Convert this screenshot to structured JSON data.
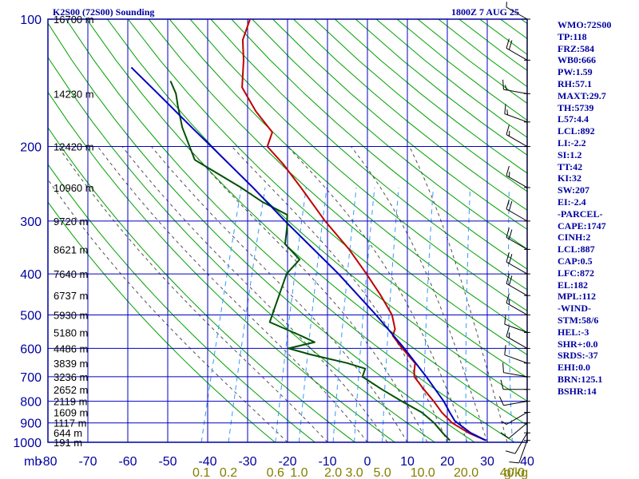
{
  "header": {
    "left_title": "K2S00 (72S00) Sounding",
    "right_title": "1800Z  7 AUG 25"
  },
  "indices": [
    "WMO:72S00",
    "TP:118",
    "FRZ:584",
    "WB0:666",
    "PW:1.59",
    "RH:57.1",
    "MAXT:29.7",
    "TH:5739",
    "L57:4.4",
    "LCL:892",
    "LI:-2.2",
    "SI:1.2",
    "TT:42",
    "KI:32",
    "SW:207",
    "EI:-2.4",
    "-PARCEL-",
    "CAPE:1747",
    "CINH:2",
    "LCL:887",
    "CAP:0.5",
    "LFC:872",
    "EL:182",
    "MPL:112",
    "-WIND-",
    "STM:58/6",
    "HEL:-3",
    "SHR+:0.0",
    "SRDS:-37",
    "EHI:0.0",
    "BRN:125.1",
    "BSHR:14"
  ],
  "colors": {
    "border": "#0000a0",
    "grid": "#0000c0",
    "dry_adiabat": "#00a000",
    "moist_adiabat": "#505050",
    "mixing_ratio": "#3399ff",
    "temperature": "#c00000",
    "dewpoint": "#005000",
    "parcel": "#0000c0",
    "mixing_label": "#808000"
  },
  "chart_data": {
    "type": "line",
    "title": "K2S00 (72S00) Sounding",
    "subtitle": "1800Z  7 AUG 25",
    "xlabel": "",
    "ylabel": "mb",
    "y_scale": "log",
    "ylim": [
      1000,
      100
    ],
    "xlim": [
      -80,
      40
    ],
    "pressure_ticks": [
      100,
      200,
      300,
      400,
      500,
      600,
      700,
      800,
      900,
      1000
    ],
    "pressure_tick_labels": [
      "100",
      "200",
      "300",
      "400",
      "500",
      "600",
      "700",
      "800",
      "900",
      "1000"
    ],
    "temperature_ticks": [
      -80,
      -70,
      -60,
      -50,
      -40,
      -30,
      -20,
      -10,
      0,
      10,
      20,
      30,
      40
    ],
    "temperature_tick_labels": [
      "-80",
      "-70",
      "-60",
      "-50",
      "-40",
      "-30",
      "-20",
      "-10",
      "0",
      "10",
      "20",
      "30",
      "40"
    ],
    "axis_unit_label": "mb",
    "height_labels": [
      {
        "p": 100,
        "text": "16700 m"
      },
      {
        "p": 150,
        "text": "14230 m"
      },
      {
        "p": 200,
        "text": "12420 m"
      },
      {
        "p": 250,
        "text": "10960 m"
      },
      {
        "p": 300,
        "text": "9720 m"
      },
      {
        "p": 350,
        "text": "8621 m"
      },
      {
        "p": 400,
        "text": "7640 m"
      },
      {
        "p": 450,
        "text": "6737 m"
      },
      {
        "p": 500,
        "text": "5930 m"
      },
      {
        "p": 550,
        "text": "5180 m"
      },
      {
        "p": 600,
        "text": "4486 m"
      },
      {
        "p": 650,
        "text": "3839 m"
      },
      {
        "p": 700,
        "text": "3236 m"
      },
      {
        "p": 750,
        "text": "2652 m"
      },
      {
        "p": 800,
        "text": "2119 m"
      },
      {
        "p": 850,
        "text": "1609 m"
      },
      {
        "p": 900,
        "text": "1117 m"
      },
      {
        "p": 950,
        "text": "644 m"
      },
      {
        "p": 1000,
        "text": "191 m"
      }
    ],
    "mixing_ratio_labels": [
      "0.1",
      "0.2",
      "0.6",
      "1.0",
      "2.0",
      "3.0",
      "5.0",
      "10.0",
      "20.0",
      "40.0",
      "g/kg"
    ],
    "mixing_ratio_values": [
      0.1,
      0.2,
      0.6,
      1.0,
      2.0,
      3.0,
      5.0,
      10.0,
      20.0,
      40.0
    ],
    "series": [
      {
        "name": "",
        "role": "temperature",
        "points": [
          {
            "p": 990,
            "t": 29.5
          },
          {
            "p": 950,
            "t": 24.5
          },
          {
            "p": 900,
            "t": 19.5
          },
          {
            "p": 850,
            "t": 16.0
          },
          {
            "p": 800,
            "t": 13.0
          },
          {
            "p": 750,
            "t": 9.5
          },
          {
            "p": 700,
            "t": 6.0
          },
          {
            "p": 680,
            "t": 5.5
          },
          {
            "p": 650,
            "t": 5.0
          },
          {
            "p": 600,
            "t": 0.5
          },
          {
            "p": 560,
            "t": -3.0
          },
          {
            "p": 540,
            "t": -3.0
          },
          {
            "p": 500,
            "t": -5.0
          },
          {
            "p": 450,
            "t": -9.5
          },
          {
            "p": 400,
            "t": -15.0
          },
          {
            "p": 350,
            "t": -21.5
          },
          {
            "p": 300,
            "t": -30.0
          },
          {
            "p": 250,
            "t": -39.0
          },
          {
            "p": 220,
            "t": -45.5
          },
          {
            "p": 200,
            "t": -51.0
          },
          {
            "p": 185,
            "t": -51.0
          },
          {
            "p": 165,
            "t": -57.0
          },
          {
            "p": 145,
            "t": -62.5
          },
          {
            "p": 125,
            "t": -64.5
          },
          {
            "p": 112,
            "t": -66.5
          },
          {
            "p": 100,
            "t": -66.5
          }
        ]
      },
      {
        "name": "",
        "role": "dewpoint",
        "points": [
          {
            "p": 990,
            "t": 20.5
          },
          {
            "p": 950,
            "t": 18.0
          },
          {
            "p": 900,
            "t": 15.0
          },
          {
            "p": 850,
            "t": 11.0
          },
          {
            "p": 800,
            "t": 5.0
          },
          {
            "p": 750,
            "t": -1.0
          },
          {
            "p": 700,
            "t": -7.0
          },
          {
            "p": 670,
            "t": -7.0
          },
          {
            "p": 650,
            "t": -12.0
          },
          {
            "p": 620,
            "t": -22.0
          },
          {
            "p": 600,
            "t": -28.0
          },
          {
            "p": 580,
            "t": -22.0
          },
          {
            "p": 560,
            "t": -26.0
          },
          {
            "p": 520,
            "t": -35.0
          },
          {
            "p": 500,
            "t": -35.0
          },
          {
            "p": 450,
            "t": -35.0
          },
          {
            "p": 400,
            "t": -35.0
          },
          {
            "p": 370,
            "t": -33.0
          },
          {
            "p": 340,
            "t": -38.0
          },
          {
            "p": 310,
            "t": -39.0
          },
          {
            "p": 290,
            "t": -40.0
          },
          {
            "p": 270,
            "t": -47.5
          },
          {
            "p": 250,
            "t": -54.0
          },
          {
            "p": 215,
            "t": -68.0
          },
          {
            "p": 180,
            "t": -74.0
          },
          {
            "p": 160,
            "t": -77.0
          },
          {
            "p": 150,
            "t": -78.5
          },
          {
            "p": 140,
            "t": -81.0
          }
        ]
      },
      {
        "name": "",
        "role": "parcel",
        "points": [
          {
            "p": 990,
            "t": 29.5
          },
          {
            "p": 950,
            "t": 25.0
          },
          {
            "p": 890,
            "t": 20.0
          },
          {
            "p": 850,
            "t": 18.0
          },
          {
            "p": 800,
            "t": 15.5
          },
          {
            "p": 700,
            "t": 9.0
          },
          {
            "p": 600,
            "t": 1.0
          },
          {
            "p": 500,
            "t": -9.0
          },
          {
            "p": 400,
            "t": -22.0
          },
          {
            "p": 300,
            "t": -40.0
          },
          {
            "p": 250,
            "t": -51.0
          },
          {
            "p": 200,
            "t": -65.0
          },
          {
            "p": 182,
            "t": -71.0
          },
          {
            "p": 150,
            "t": -83.0
          },
          {
            "p": 130,
            "t": -92.0
          }
        ]
      }
    ],
    "wind_barbs": [
      {
        "p": 990,
        "dir": 200,
        "spd": 10
      },
      {
        "p": 950,
        "dir": 210,
        "spd": 10
      },
      {
        "p": 900,
        "dir": 230,
        "spd": 10
      },
      {
        "p": 850,
        "dir": 240,
        "spd": 5
      },
      {
        "p": 800,
        "dir": 260,
        "spd": 10
      },
      {
        "p": 750,
        "dir": 270,
        "spd": 10
      },
      {
        "p": 700,
        "dir": 280,
        "spd": 10
      },
      {
        "p": 650,
        "dir": 290,
        "spd": 10
      },
      {
        "p": 600,
        "dir": 300,
        "spd": 15
      },
      {
        "p": 550,
        "dir": 290,
        "spd": 10
      },
      {
        "p": 500,
        "dir": 300,
        "spd": 15
      },
      {
        "p": 450,
        "dir": 300,
        "spd": 20
      },
      {
        "p": 400,
        "dir": 300,
        "spd": 20
      },
      {
        "p": 350,
        "dir": 300,
        "spd": 20
      },
      {
        "p": 300,
        "dir": 300,
        "spd": 20
      },
      {
        "p": 250,
        "dir": 300,
        "spd": 15
      },
      {
        "p": 200,
        "dir": 300,
        "spd": 15
      },
      {
        "p": 175,
        "dir": 290,
        "spd": 15
      },
      {
        "p": 150,
        "dir": 280,
        "spd": 15
      },
      {
        "p": 125,
        "dir": 300,
        "spd": 20
      },
      {
        "p": 100,
        "dir": 300,
        "spd": 5
      }
    ],
    "grid": true,
    "legend": "none"
  }
}
